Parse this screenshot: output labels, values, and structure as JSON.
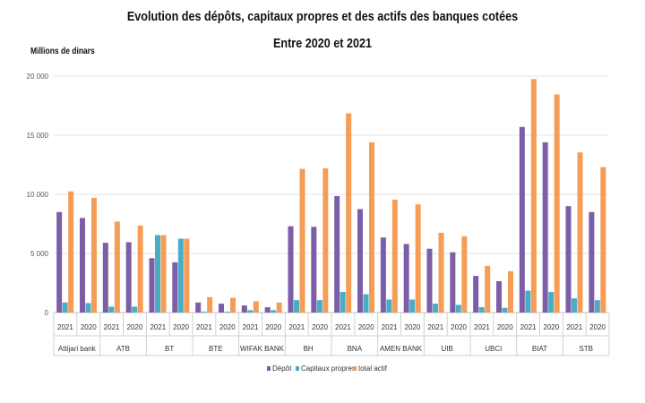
{
  "chart_data": {
    "type": "bar",
    "title": "Evolution des dépôts, capitaux propres et des actifs des banques cotées",
    "subtitle": "Entre 2020 et 2021",
    "ylabel": "Millions de dinars",
    "ylim": [
      0,
      20000
    ],
    "yticks": [
      "0",
      "5 000",
      "10 000",
      "15 000",
      "20 000"
    ],
    "ytick_values": [
      0,
      5000,
      10000,
      15000,
      20000
    ],
    "grid": true,
    "legend_position": "bottom",
    "banks": [
      {
        "name": "Attijari bank",
        "years": [
          {
            "year": "2021",
            "depot": 8500,
            "capitaux": 850,
            "actif": 10250
          },
          {
            "year": "2020",
            "depot": 8000,
            "capitaux": 800,
            "actif": 9700
          }
        ]
      },
      {
        "name": "ATB",
        "years": [
          {
            "year": "2021",
            "depot": 5900,
            "capitaux": 500,
            "actif": 7700
          },
          {
            "year": "2020",
            "depot": 5950,
            "capitaux": 500,
            "actif": 7350
          }
        ]
      },
      {
        "name": "BT",
        "years": [
          {
            "year": "2021",
            "depot": 4600,
            "capitaux": 6550,
            "actif": 6550
          },
          {
            "year": "2020",
            "depot": 4250,
            "capitaux": 6250,
            "actif": 6250
          }
        ]
      },
      {
        "name": "BTE",
        "years": [
          {
            "year": "2021",
            "depot": 850,
            "capitaux": 80,
            "actif": 1300
          },
          {
            "year": "2020",
            "depot": 750,
            "capitaux": 80,
            "actif": 1250
          }
        ]
      },
      {
        "name": "WIFAK BANK",
        "years": [
          {
            "year": "2021",
            "depot": 600,
            "capitaux": 200,
            "actif": 950
          },
          {
            "year": "2020",
            "depot": 450,
            "capitaux": 200,
            "actif": 850
          }
        ]
      },
      {
        "name": "BH",
        "years": [
          {
            "year": "2021",
            "depot": 7300,
            "capitaux": 1050,
            "actif": 12150
          },
          {
            "year": "2020",
            "depot": 7250,
            "capitaux": 1050,
            "actif": 12200
          }
        ]
      },
      {
        "name": "BNA",
        "years": [
          {
            "year": "2021",
            "depot": 9850,
            "capitaux": 1750,
            "actif": 16850
          },
          {
            "year": "2020",
            "depot": 8750,
            "capitaux": 1550,
            "actif": 14400
          }
        ]
      },
      {
        "name": "AMEN BANK",
        "years": [
          {
            "year": "2021",
            "depot": 6350,
            "capitaux": 1100,
            "actif": 9550
          },
          {
            "year": "2020",
            "depot": 5800,
            "capitaux": 1100,
            "actif": 9150
          }
        ]
      },
      {
        "name": "UIB",
        "years": [
          {
            "year": "2021",
            "depot": 5400,
            "capitaux": 750,
            "actif": 6750
          },
          {
            "year": "2020",
            "depot": 5100,
            "capitaux": 650,
            "actif": 6450
          }
        ]
      },
      {
        "name": "UBCI",
        "years": [
          {
            "year": "2021",
            "depot": 3100,
            "capitaux": 450,
            "actif": 3950
          },
          {
            "year": "2020",
            "depot": 2650,
            "capitaux": 400,
            "actif": 3500
          }
        ]
      },
      {
        "name": "BIAT",
        "years": [
          {
            "year": "2021",
            "depot": 15700,
            "capitaux": 1850,
            "actif": 19750
          },
          {
            "year": "2020",
            "depot": 14400,
            "capitaux": 1750,
            "actif": 18450
          }
        ]
      },
      {
        "name": "STB",
        "years": [
          {
            "year": "2021",
            "depot": 9000,
            "capitaux": 1200,
            "actif": 13550
          },
          {
            "year": "2020",
            "depot": 8500,
            "capitaux": 1050,
            "actif": 12300
          }
        ]
      }
    ],
    "series": [
      {
        "key": "depot",
        "name": "Dépôt",
        "color": "#7b5ea7"
      },
      {
        "key": "capitaux",
        "name": "Capitaux propres",
        "color": "#4bacc6"
      },
      {
        "key": "actif",
        "name": "total actif",
        "color": "#f59d56"
      }
    ]
  }
}
